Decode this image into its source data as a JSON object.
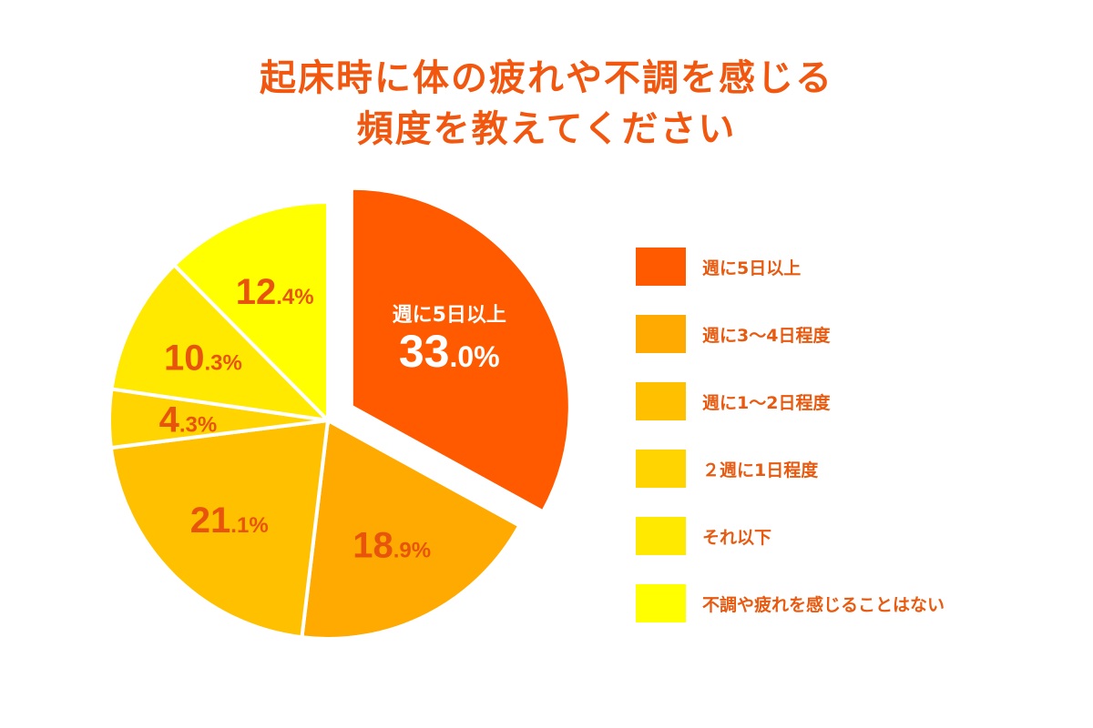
{
  "title": {
    "line1": "起床時に体の疲れや不調を感じる",
    "line2": "頻度を教えてください"
  },
  "chart_data": {
    "type": "pie",
    "title": "起床時に体の疲れや不調を感じる頻度を教えてください",
    "unit": "%",
    "legend_position": "right",
    "exploded_first_slice": true,
    "series": [
      {
        "name": "週に5日以上",
        "value": 33.0,
        "int": "33",
        "dec": ".0%",
        "color": "#ff5a00",
        "label_color": "#ffffff",
        "show_name_on_slice": true
      },
      {
        "name": "週に3〜4日程度",
        "value": 18.9,
        "int": "18",
        "dec": ".9%",
        "color": "#ffaa00",
        "label_color": "#e8540c",
        "show_name_on_slice": false
      },
      {
        "name": "週に1〜2日程度",
        "value": 21.1,
        "int": "21",
        "dec": ".1%",
        "color": "#ffc000",
        "label_color": "#e8540c",
        "show_name_on_slice": false
      },
      {
        "name": "２週に1日程度",
        "value": 4.3,
        "int": "4",
        "dec": ".3%",
        "color": "#ffd400",
        "label_color": "#e8540c",
        "show_name_on_slice": false
      },
      {
        "name": "それ以下",
        "value": 10.3,
        "int": "10",
        "dec": ".3%",
        "color": "#ffe900",
        "label_color": "#e8540c",
        "show_name_on_slice": false
      },
      {
        "name": "不調や疲れを感じることはない",
        "value": 12.4,
        "int": "12",
        "dec": ".4%",
        "color": "#ffff00",
        "label_color": "#e8540c",
        "show_name_on_slice": false
      }
    ]
  }
}
